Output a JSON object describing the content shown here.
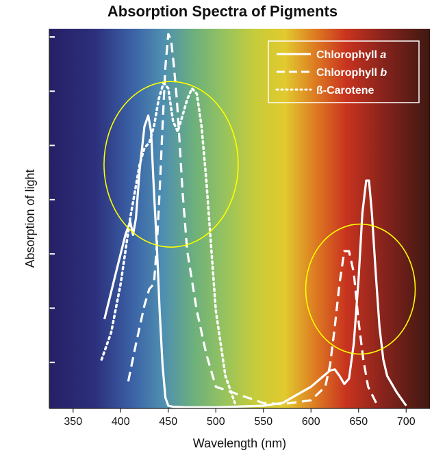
{
  "title": "Absorption Spectra of Pigments",
  "chart_data": {
    "type": "line",
    "title": "Absorption Spectra of Pigments",
    "xlabel": "Wavelength (nm)",
    "ylabel": "Absorption of light",
    "xlim": [
      325,
      725
    ],
    "ylim": [
      0,
      7
    ],
    "x_ticks": [
      350,
      400,
      450,
      500,
      550,
      600,
      650,
      700
    ],
    "y_tick_count": 7,
    "y_tick_labels_shown": false,
    "grid": false,
    "background": "visible-light color spectrum gradient (violet to red)",
    "legend_position": "top-right",
    "series": [
      {
        "name": "Chlorophyll a",
        "label_base": "Chlorophyll ",
        "label_italic": "a",
        "style": "solid",
        "color": "#ffffff",
        "x": [
          383,
          395,
          405,
          410,
          413,
          416,
          420,
          425,
          429,
          432,
          435,
          438,
          441,
          444,
          447,
          450,
          455,
          470,
          500,
          550,
          570,
          585,
          600,
          610,
          620,
          625,
          630,
          635,
          640,
          645,
          650,
          654,
          658,
          661,
          664,
          668,
          672,
          676,
          680,
          690,
          700
        ],
        "y": [
          1.65,
          2.5,
          3.2,
          3.45,
          3.2,
          3.5,
          4.4,
          5.2,
          5.4,
          5.1,
          4.0,
          3.0,
          1.8,
          0.8,
          0.2,
          0.05,
          0.03,
          0.02,
          0.02,
          0.05,
          0.1,
          0.25,
          0.4,
          0.55,
          0.7,
          0.72,
          0.6,
          0.45,
          0.55,
          1.2,
          2.4,
          3.6,
          4.2,
          4.2,
          3.6,
          2.5,
          1.5,
          0.9,
          0.6,
          0.3,
          0.05
        ]
      },
      {
        "name": "Chlorophyll b",
        "label_base": "Chlorophyll ",
        "label_italic": "b",
        "style": "dashed",
        "color": "#ffffff",
        "x": [
          408,
          415,
          420,
          425,
          430,
          435,
          438,
          441,
          444,
          447,
          450,
          453,
          456,
          459,
          462,
          465,
          470,
          480,
          490,
          500,
          550,
          570,
          600,
          615,
          620,
          625,
          630,
          635,
          640,
          645,
          650,
          655,
          660,
          670
        ],
        "y": [
          0.5,
          1.1,
          1.5,
          1.9,
          2.2,
          2.3,
          3.0,
          4.0,
          5.2,
          6.3,
          6.9,
          6.8,
          6.3,
          5.7,
          4.9,
          4.0,
          2.9,
          1.8,
          1.0,
          0.4,
          0.1,
          0.08,
          0.15,
          0.4,
          0.8,
          1.5,
          2.3,
          2.9,
          2.9,
          2.5,
          1.6,
          0.9,
          0.4,
          0.05
        ]
      },
      {
        "name": "ß-Carotene",
        "label_base": "ß-Carotene",
        "label_italic": "",
        "style": "dotted",
        "color": "#ffffff",
        "x": [
          380,
          390,
          400,
          405,
          410,
          415,
          420,
          425,
          430,
          435,
          440,
          445,
          450,
          455,
          460,
          465,
          470,
          475,
          480,
          485,
          490,
          495,
          500,
          510,
          520
        ],
        "y": [
          0.9,
          1.4,
          2.3,
          2.9,
          3.5,
          4.0,
          4.5,
          4.8,
          4.9,
          5.2,
          5.7,
          6.0,
          5.9,
          5.3,
          5.1,
          5.4,
          5.7,
          5.9,
          5.8,
          5.2,
          4.2,
          3.0,
          1.8,
          0.6,
          0.1
        ]
      }
    ],
    "annotations": [
      {
        "type": "ellipse",
        "color": "#ffff00",
        "note": "blue-violet absorption peaks"
      },
      {
        "type": "ellipse",
        "color": "#ffff00",
        "note": "red absorption peaks"
      }
    ]
  }
}
